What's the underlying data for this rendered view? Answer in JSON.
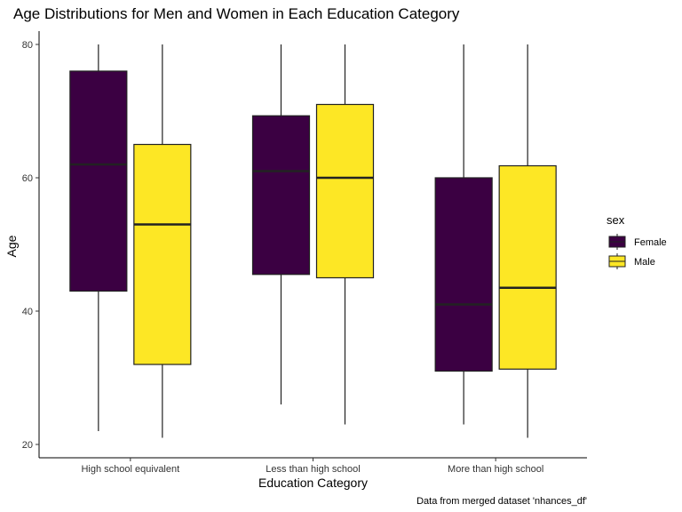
{
  "chart_data": {
    "type": "boxplot",
    "title": "Age Distributions for Men and Women in Each Education Category",
    "xlabel": "Education Category",
    "ylabel": "Age",
    "caption": "Data from merged dataset 'nhances_df'",
    "categories": [
      "High school equivalent",
      "Less than high school",
      "More than high school"
    ],
    "ylim": [
      18,
      82
    ],
    "yticks": [
      20,
      40,
      60,
      80
    ],
    "grid": false,
    "legend": {
      "title": "sex",
      "position": "right"
    },
    "series": [
      {
        "name": "Female",
        "color": "#3b0042",
        "boxes": [
          {
            "min": 22,
            "q1": 43,
            "median": 62,
            "q3": 76,
            "max": 80
          },
          {
            "min": 26,
            "q1": 45.5,
            "median": 61,
            "q3": 69.3,
            "max": 80
          },
          {
            "min": 23,
            "q1": 31,
            "median": 41,
            "q3": 60,
            "max": 80
          }
        ]
      },
      {
        "name": "Male",
        "color": "#fde725",
        "boxes": [
          {
            "min": 21,
            "q1": 32,
            "median": 53,
            "q3": 65,
            "max": 80
          },
          {
            "min": 23,
            "q1": 45,
            "median": 60,
            "q3": 71,
            "max": 80
          },
          {
            "min": 21,
            "q1": 31.3,
            "median": 43.5,
            "q3": 61.8,
            "max": 80
          }
        ]
      }
    ]
  }
}
